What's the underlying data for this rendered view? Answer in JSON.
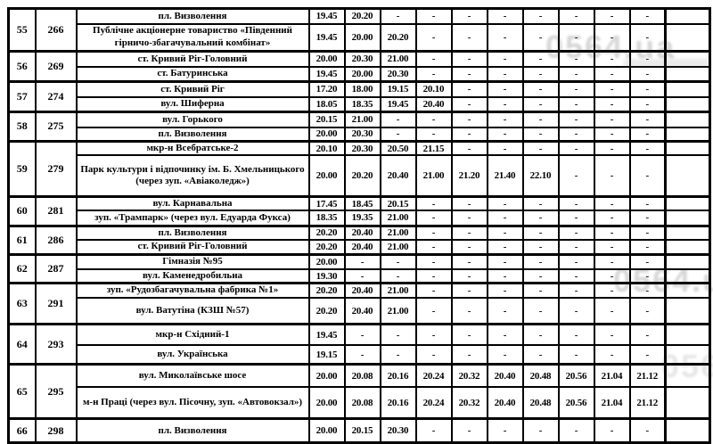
{
  "table": {
    "dash": "-",
    "time_slot_count": 10,
    "groups": [
      {
        "num": "55",
        "route": "266",
        "stops": [
          {
            "name": "пл. Визволення",
            "times": [
              "19.45",
              "20.20",
              "-",
              "-",
              "-",
              "-",
              "-",
              "-",
              "-",
              "-"
            ]
          },
          {
            "name": "Публічне акціонерне товариство «Південний гірничо-збагачувальний комбінат»",
            "times": [
              "19.45",
              "20.00",
              "20.20",
              "-",
              "-",
              "-",
              "-",
              "-",
              "-",
              "-"
            ]
          }
        ]
      },
      {
        "num": "56",
        "route": "269",
        "stops": [
          {
            "name": "ст. Кривий Ріг-Головний",
            "times": [
              "20.00",
              "20.30",
              "21.00",
              "-",
              "-",
              "-",
              "-",
              "-",
              "-",
              "-"
            ]
          },
          {
            "name": "ст. Батуринська",
            "times": [
              "19.45",
              "20.00",
              "20.30",
              "-",
              "-",
              "-",
              "-",
              "-",
              "-",
              "-"
            ]
          }
        ]
      },
      {
        "num": "57",
        "route": "274",
        "stops": [
          {
            "name": "ст. Кривий Ріг",
            "times": [
              "17.20",
              "18.00",
              "19.15",
              "20.10",
              "-",
              "-",
              "-",
              "-",
              "-",
              "-"
            ]
          },
          {
            "name": "вул. Шиферна",
            "times": [
              "18.05",
              "18.35",
              "19.45",
              "20.40",
              "-",
              "-",
              "-",
              "-",
              "-",
              "-"
            ]
          }
        ]
      },
      {
        "num": "58",
        "route": "275",
        "stops": [
          {
            "name": "вул. Горького",
            "times": [
              "20.15",
              "21.00",
              "-",
              "-",
              "-",
              "-",
              "-",
              "-",
              "-",
              "-"
            ]
          },
          {
            "name": "пл. Визволення",
            "times": [
              "20.00",
              "20.30",
              "-",
              "-",
              "-",
              "-",
              "-",
              "-",
              "-",
              "-"
            ]
          }
        ]
      },
      {
        "num": "59",
        "route": "279",
        "stops": [
          {
            "name": "мкр-н Всебратське-2",
            "times": [
              "20.10",
              "20.30",
              "20.50",
              "21.15",
              "-",
              "-",
              "-",
              "-",
              "-",
              "-"
            ]
          },
          {
            "name": "Парк культури і відпочинку ім. Б. Хмельницького (через зуп. «Авіаколедж»)",
            "times": [
              "20.00",
              "20.20",
              "20.40",
              "21.00",
              "21.20",
              "21.40",
              "22.10",
              "-",
              "-",
              "-"
            ]
          }
        ]
      },
      {
        "num": "60",
        "route": "281",
        "stops": [
          {
            "name": "вул. Карнавальна",
            "times": [
              "17.45",
              "18.45",
              "20.15",
              "-",
              "-",
              "-",
              "-",
              "-",
              "-",
              "-"
            ]
          },
          {
            "name": "зуп. «Трампарк» (через вул. Едуарда Фукса)",
            "times": [
              "18.35",
              "19.35",
              "21.00",
              "-",
              "-",
              "-",
              "-",
              "-",
              "-",
              "-"
            ]
          }
        ]
      },
      {
        "num": "61",
        "route": "286",
        "stops": [
          {
            "name": "пл. Визволення",
            "times": [
              "20.20",
              "20.40",
              "21.00",
              "-",
              "-",
              "-",
              "-",
              "-",
              "-",
              "-"
            ]
          },
          {
            "name": "ст. Кривий Ріг-Головний",
            "times": [
              "20.20",
              "20.40",
              "21.00",
              "-",
              "-",
              "-",
              "-",
              "-",
              "-",
              "-"
            ]
          }
        ]
      },
      {
        "num": "62",
        "route": "287",
        "stops": [
          {
            "name": "Гімназія №95",
            "times": [
              "20.00",
              "-",
              "-",
              "-",
              "-",
              "-",
              "-",
              "-",
              "-",
              "-"
            ]
          },
          {
            "name": "вул. Каменедробильна",
            "times": [
              "19.30",
              "-",
              "-",
              "-",
              "-",
              "-",
              "-",
              "-",
              "-",
              "-"
            ]
          }
        ]
      },
      {
        "num": "63",
        "route": "291",
        "stops": [
          {
            "name": "зуп. «Рудозбагачувальна фабрика №1»",
            "times": [
              "20.20",
              "20.40",
              "21.00",
              "-",
              "-",
              "-",
              "-",
              "-",
              "-",
              "-"
            ]
          },
          {
            "name": "вул. Ватутіна (КЗШ №57)",
            "times": [
              "20.20",
              "20.40",
              "21.00",
              "-",
              "-",
              "-",
              "-",
              "-",
              "-",
              "-"
            ]
          }
        ]
      },
      {
        "num": "64",
        "route": "293",
        "stops": [
          {
            "name": "мкр-н Східний-1",
            "times": [
              "19.45",
              "-",
              "-",
              "-",
              "-",
              "-",
              "-",
              "-",
              "-",
              "-"
            ]
          },
          {
            "name": "вул. Українська",
            "times": [
              "19.15",
              "-",
              "-",
              "-",
              "-",
              "-",
              "-",
              "-",
              "-",
              "-"
            ]
          }
        ]
      },
      {
        "num": "65",
        "route": "295",
        "stops": [
          {
            "name": "вул. Миколаївське шосе",
            "times": [
              "20.00",
              "20.08",
              "20.16",
              "20.24",
              "20.32",
              "20.40",
              "20.48",
              "20.56",
              "21.04",
              "21.12"
            ]
          },
          {
            "name": "м-н Праці (через вул. Пісочну, зуп. «Автовокзал»)",
            "times": [
              "20.00",
              "20.08",
              "20.16",
              "20.24",
              "20.32",
              "20.40",
              "20.48",
              "20.56",
              "21.04",
              "21.12"
            ]
          }
        ]
      },
      {
        "num": "66",
        "route": "298",
        "stops": [
          {
            "name": "пл. Визволення",
            "times": [
              "20.00",
              "20.15",
              "20.30",
              "-",
              "-",
              "-",
              "-",
              "-",
              "-",
              "-"
            ]
          }
        ]
      }
    ]
  },
  "watermark": {
    "text": "0564.ua"
  },
  "colors": {
    "border": "#000000",
    "text": "#000000",
    "background": "#ffffff",
    "watermark": "#3a3a3a"
  }
}
